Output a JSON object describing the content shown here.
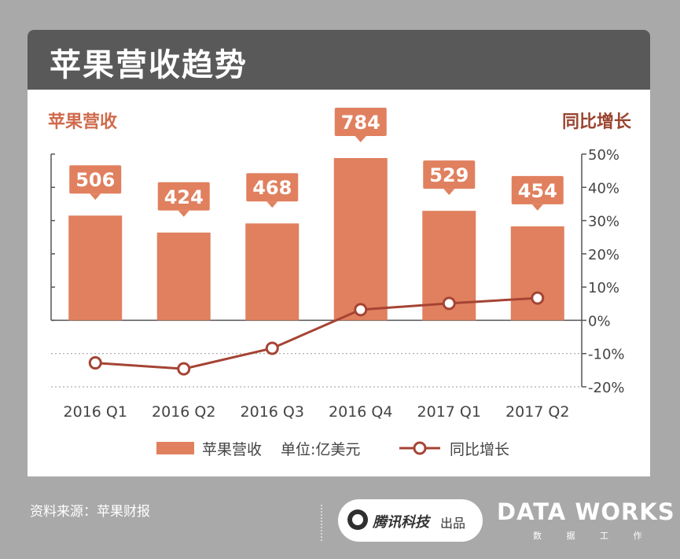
{
  "header": {
    "title": "苹果营收趋势"
  },
  "colors": {
    "bar": "#e0805f",
    "line": "#a54434",
    "label_bg": "#e0805f",
    "text_accent": "#d06a4c",
    "header_bg": "#595959"
  },
  "chart_data": {
    "type": "bar+line",
    "categories": [
      "2016 Q1",
      "2016 Q2",
      "2016 Q3",
      "2016 Q4",
      "2017 Q1",
      "2017 Q2"
    ],
    "left_axis_title": "苹果营收",
    "right_axis_title": "同比增长",
    "right_axis_ticks": [
      "50%",
      "40%",
      "30%",
      "20%",
      "10%",
      "0%",
      "-10%",
      "-20%"
    ],
    "right_axis_range": [
      -20,
      50
    ],
    "series": [
      {
        "name": "苹果营收 单位:亿美元",
        "type": "bar",
        "values": [
          506,
          424,
          468,
          784,
          529,
          454
        ],
        "data_labels": [
          "506",
          "424",
          "468",
          "784",
          "529",
          "454"
        ]
      },
      {
        "name": "同比增长",
        "type": "line",
        "values": [
          -12.8,
          -14.6,
          -8.4,
          3.2,
          5.1,
          6.7
        ]
      }
    ],
    "legend": {
      "placement": "bottom",
      "bar_label": "苹果营收",
      "bar_unit": "单位:亿美元",
      "line_label": "同比增长"
    }
  },
  "footer": {
    "source": "资料来源：苹果财报",
    "publisher": "腾讯科技",
    "publisher_suffix": "出品",
    "logo": "DATA WORKS",
    "logo_sub": "数 据 工 作"
  }
}
